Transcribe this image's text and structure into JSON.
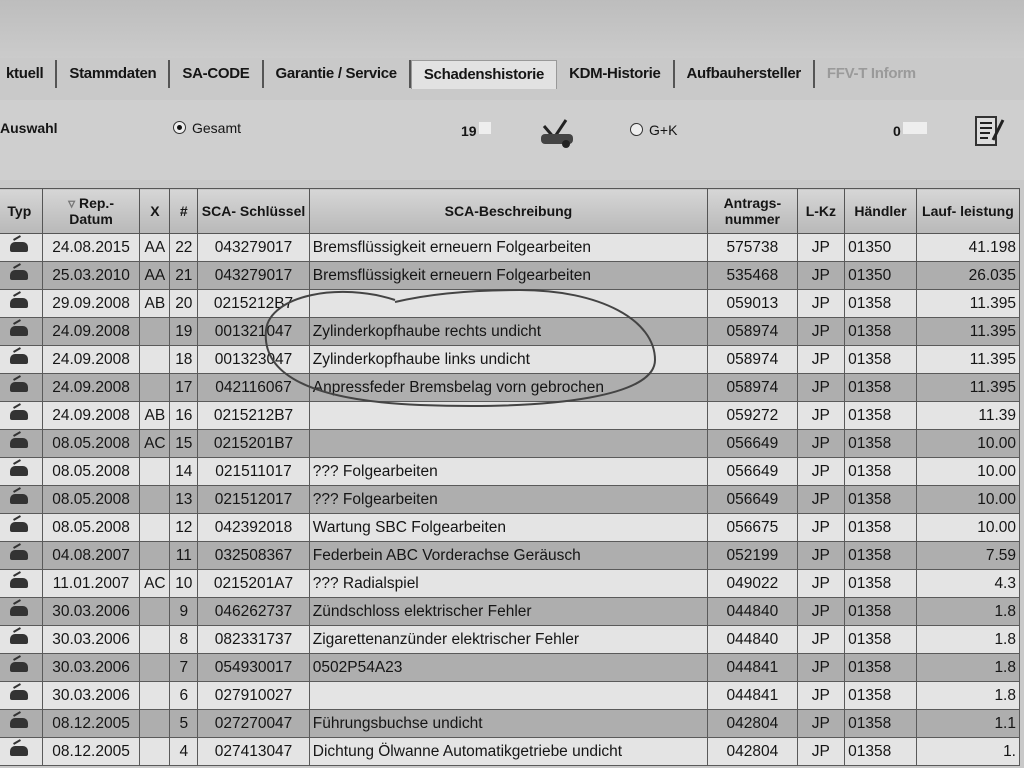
{
  "tabs": [
    {
      "label": "ktuell",
      "state": "normal"
    },
    {
      "label": "Stammdaten",
      "state": "normal"
    },
    {
      "label": "SA-CODE",
      "state": "normal"
    },
    {
      "label": "Garantie / Service",
      "state": "normal"
    },
    {
      "label": "Schadenshistorie",
      "state": "active"
    },
    {
      "label": "KDM-Historie",
      "state": "normal"
    },
    {
      "label": "Aufbauhersteller",
      "state": "normal"
    },
    {
      "label": "FFV-T Inform",
      "state": "disabled"
    }
  ],
  "options": {
    "auswahl_label": "Auswahl",
    "gesamt_label": "Gesamt",
    "gesamt_selected": true,
    "gesamt_count": "19",
    "gk_label": "G+K",
    "gk_selected": false,
    "gk_count": "0",
    "icons": [
      "car-repair-icon",
      "report-list-icon"
    ]
  },
  "table": {
    "columns": [
      "Typ",
      "Rep.- Datum",
      "X",
      "#",
      "SCA- Schlüssel",
      "SCA-Beschreibung",
      "Antrags- nummer",
      "L-Kz",
      "Händler",
      "Lauf- leistung"
    ],
    "sort_column": "Rep.- Datum",
    "rows": [
      [
        "car",
        "24.08.2015",
        "AA",
        "22",
        "043279017",
        "Bremsflüssigkeit erneuern Folgearbeiten",
        "575738",
        "JP",
        "01350",
        "41.198"
      ],
      [
        "car",
        "25.03.2010",
        "AA",
        "21",
        "043279017",
        "Bremsflüssigkeit erneuern Folgearbeiten",
        "535468",
        "JP",
        "01350",
        "26.035"
      ],
      [
        "car",
        "29.09.2008",
        "AB",
        "20",
        "0215212B7",
        "",
        "059013",
        "JP",
        "01358",
        "11.395"
      ],
      [
        "car",
        "24.09.2008",
        "",
        "19",
        "001321047",
        "Zylinderkopfhaube rechts undicht",
        "058974",
        "JP",
        "01358",
        "11.395"
      ],
      [
        "car",
        "24.09.2008",
        "",
        "18",
        "001323047",
        "Zylinderkopfhaube links undicht",
        "058974",
        "JP",
        "01358",
        "11.395"
      ],
      [
        "car",
        "24.09.2008",
        "",
        "17",
        "042116067",
        "Anpressfeder Bremsbelag vorn gebrochen",
        "058974",
        "JP",
        "01358",
        "11.395"
      ],
      [
        "car",
        "24.09.2008",
        "AB",
        "16",
        "0215212B7",
        "",
        "059272",
        "JP",
        "01358",
        "11.39"
      ],
      [
        "car",
        "08.05.2008",
        "AC",
        "15",
        "0215201B7",
        "",
        "056649",
        "JP",
        "01358",
        "10.00"
      ],
      [
        "car",
        "08.05.2008",
        "",
        "14",
        "021511017",
        "??? Folgearbeiten",
        "056649",
        "JP",
        "01358",
        "10.00"
      ],
      [
        "car",
        "08.05.2008",
        "",
        "13",
        "021512017",
        "??? Folgearbeiten",
        "056649",
        "JP",
        "01358",
        "10.00"
      ],
      [
        "car",
        "08.05.2008",
        "",
        "12",
        "042392018",
        "Wartung SBC Folgearbeiten",
        "056675",
        "JP",
        "01358",
        "10.00"
      ],
      [
        "car",
        "04.08.2007",
        "",
        "11",
        "032508367",
        "Federbein ABC Vorderachse Geräusch",
        "052199",
        "JP",
        "01358",
        "7.59"
      ],
      [
        "car",
        "11.01.2007",
        "AC",
        "10",
        "0215201A7",
        "??? Radialspiel",
        "049022",
        "JP",
        "01358",
        "4.3"
      ],
      [
        "car",
        "30.03.2006",
        "",
        "9",
        "046262737",
        "Zündschloss elektrischer Fehler",
        "044840",
        "JP",
        "01358",
        "1.8"
      ],
      [
        "car",
        "30.03.2006",
        "",
        "8",
        "082331737",
        "Zigarettenanzünder elektrischer Fehler",
        "044840",
        "JP",
        "01358",
        "1.8"
      ],
      [
        "car",
        "30.03.2006",
        "",
        "7",
        "054930017",
        "0502P54A23",
        "044841",
        "JP",
        "01358",
        "1.8"
      ],
      [
        "car",
        "30.03.2006",
        "",
        "6",
        "027910027",
        "",
        "044841",
        "JP",
        "01358",
        "1.8"
      ],
      [
        "car",
        "08.12.2005",
        "",
        "5",
        "027270047",
        "Führungsbuchse undicht",
        "042804",
        "JP",
        "01358",
        "1.1"
      ],
      [
        "car",
        "08.12.2005",
        "",
        "4",
        "027413047",
        "Dichtung Ölwanne Automatikgetriebe undicht",
        "042804",
        "JP",
        "01358",
        "1."
      ]
    ]
  }
}
